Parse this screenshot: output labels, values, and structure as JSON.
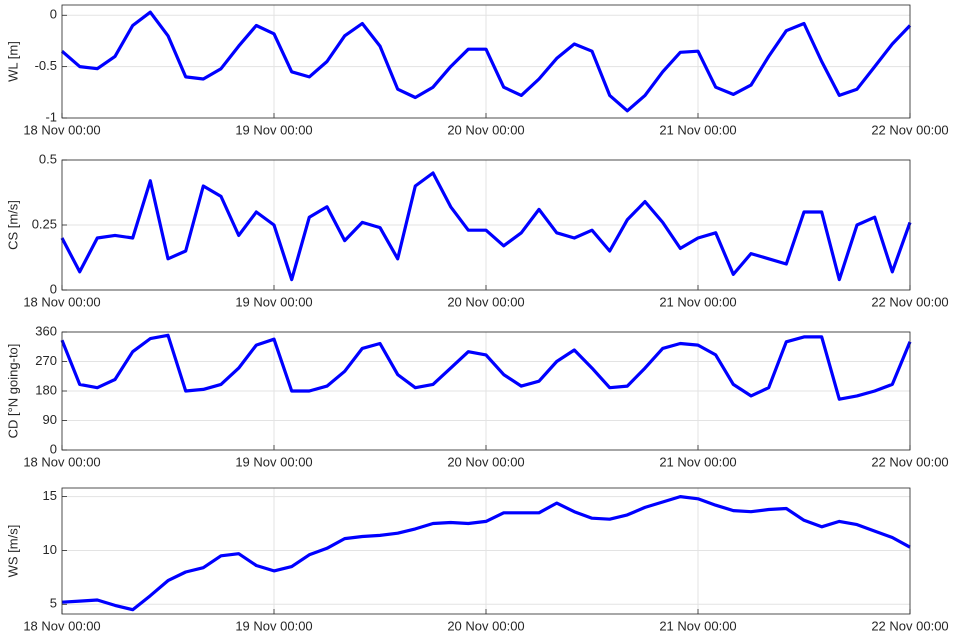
{
  "chart_data": [
    {
      "type": "line",
      "ylabel": "WL [m]",
      "grid": true,
      "x": [
        "18 Nov 00:00",
        "18 Nov 02:00",
        "18 Nov 04:00",
        "18 Nov 06:00",
        "18 Nov 08:00",
        "18 Nov 10:00",
        "18 Nov 12:00",
        "18 Nov 14:00",
        "18 Nov 16:00",
        "18 Nov 18:00",
        "18 Nov 20:00",
        "18 Nov 22:00",
        "19 Nov 00:00",
        "19 Nov 02:00",
        "19 Nov 04:00",
        "19 Nov 06:00",
        "19 Nov 08:00",
        "19 Nov 10:00",
        "19 Nov 12:00",
        "19 Nov 14:00",
        "19 Nov 16:00",
        "19 Nov 18:00",
        "19 Nov 20:00",
        "19 Nov 22:00",
        "20 Nov 00:00",
        "20 Nov 02:00",
        "20 Nov 04:00",
        "20 Nov 06:00",
        "20 Nov 08:00",
        "20 Nov 10:00",
        "20 Nov 12:00",
        "20 Nov 14:00",
        "20 Nov 16:00",
        "20 Nov 18:00",
        "20 Nov 20:00",
        "20 Nov 22:00",
        "21 Nov 00:00",
        "21 Nov 02:00",
        "21 Nov 04:00",
        "21 Nov 06:00",
        "21 Nov 08:00",
        "21 Nov 10:00",
        "21 Nov 12:00",
        "21 Nov 14:00",
        "21 Nov 16:00",
        "21 Nov 18:00",
        "21 Nov 20:00",
        "21 Nov 22:00",
        "22 Nov 00:00"
      ],
      "series": [
        {
          "color": "#0000ff",
          "values": [
            -0.35,
            -0.5,
            -0.52,
            -0.4,
            -0.1,
            0.03,
            -0.2,
            -0.6,
            -0.62,
            -0.52,
            -0.3,
            -0.1,
            -0.18,
            -0.55,
            -0.6,
            -0.45,
            -0.2,
            -0.08,
            -0.3,
            -0.72,
            -0.8,
            -0.7,
            -0.5,
            -0.33,
            -0.33,
            -0.7,
            -0.78,
            -0.62,
            -0.42,
            -0.28,
            -0.35,
            -0.78,
            -0.93,
            -0.78,
            -0.55,
            -0.36,
            -0.35,
            -0.7,
            -0.77,
            -0.68,
            -0.4,
            -0.15,
            -0.08,
            -0.45,
            -0.78,
            -0.72,
            -0.5,
            -0.28,
            -0.1
          ]
        }
      ],
      "xlim": [
        "18 Nov 00:00",
        "22 Nov 00:00"
      ],
      "xticks": [
        "18 Nov 00:00",
        "19 Nov 00:00",
        "20 Nov 00:00",
        "21 Nov 00:00",
        "22 Nov 00:00"
      ],
      "ylim": [
        -1,
        0.1
      ],
      "yticks": [
        -1,
        -0.5,
        0
      ]
    },
    {
      "type": "line",
      "ylabel": "CS [m/s]",
      "grid": true,
      "x": [
        "18 Nov 00:00",
        "18 Nov 02:00",
        "18 Nov 04:00",
        "18 Nov 06:00",
        "18 Nov 08:00",
        "18 Nov 10:00",
        "18 Nov 12:00",
        "18 Nov 14:00",
        "18 Nov 16:00",
        "18 Nov 18:00",
        "18 Nov 20:00",
        "18 Nov 22:00",
        "19 Nov 00:00",
        "19 Nov 02:00",
        "19 Nov 04:00",
        "19 Nov 06:00",
        "19 Nov 08:00",
        "19 Nov 10:00",
        "19 Nov 12:00",
        "19 Nov 14:00",
        "19 Nov 16:00",
        "19 Nov 18:00",
        "19 Nov 20:00",
        "19 Nov 22:00",
        "20 Nov 00:00",
        "20 Nov 02:00",
        "20 Nov 04:00",
        "20 Nov 06:00",
        "20 Nov 08:00",
        "20 Nov 10:00",
        "20 Nov 12:00",
        "20 Nov 14:00",
        "20 Nov 16:00",
        "20 Nov 18:00",
        "20 Nov 20:00",
        "20 Nov 22:00",
        "21 Nov 00:00",
        "21 Nov 02:00",
        "21 Nov 04:00",
        "21 Nov 06:00",
        "21 Nov 08:00",
        "21 Nov 10:00",
        "21 Nov 12:00",
        "21 Nov 14:00",
        "21 Nov 16:00",
        "21 Nov 18:00",
        "21 Nov 20:00",
        "21 Nov 22:00",
        "22 Nov 00:00"
      ],
      "series": [
        {
          "color": "#0000ff",
          "values": [
            0.2,
            0.07,
            0.2,
            0.21,
            0.2,
            0.42,
            0.12,
            0.15,
            0.4,
            0.36,
            0.21,
            0.3,
            0.25,
            0.04,
            0.28,
            0.32,
            0.19,
            0.26,
            0.24,
            0.12,
            0.4,
            0.45,
            0.32,
            0.23,
            0.23,
            0.17,
            0.22,
            0.31,
            0.22,
            0.2,
            0.23,
            0.15,
            0.27,
            0.34,
            0.26,
            0.16,
            0.2,
            0.22,
            0.06,
            0.14,
            0.12,
            0.1,
            0.3,
            0.3,
            0.04,
            0.25,
            0.28,
            0.07,
            0.26
          ]
        }
      ],
      "xlim": [
        "18 Nov 00:00",
        "22 Nov 00:00"
      ],
      "xticks": [
        "18 Nov 00:00",
        "19 Nov 00:00",
        "20 Nov 00:00",
        "21 Nov 00:00",
        "22 Nov 00:00"
      ],
      "ylim": [
        0,
        0.5
      ],
      "yticks": [
        0,
        0.25,
        0.5
      ]
    },
    {
      "type": "line",
      "ylabel": "CD [°N going-to]",
      "grid": true,
      "x": [
        "18 Nov 00:00",
        "18 Nov 02:00",
        "18 Nov 04:00",
        "18 Nov 06:00",
        "18 Nov 08:00",
        "18 Nov 10:00",
        "18 Nov 12:00",
        "18 Nov 14:00",
        "18 Nov 16:00",
        "18 Nov 18:00",
        "18 Nov 20:00",
        "18 Nov 22:00",
        "19 Nov 00:00",
        "19 Nov 02:00",
        "19 Nov 04:00",
        "19 Nov 06:00",
        "19 Nov 08:00",
        "19 Nov 10:00",
        "19 Nov 12:00",
        "19 Nov 14:00",
        "19 Nov 16:00",
        "19 Nov 18:00",
        "19 Nov 20:00",
        "19 Nov 22:00",
        "20 Nov 00:00",
        "20 Nov 02:00",
        "20 Nov 04:00",
        "20 Nov 06:00",
        "20 Nov 08:00",
        "20 Nov 10:00",
        "20 Nov 12:00",
        "20 Nov 14:00",
        "20 Nov 16:00",
        "20 Nov 18:00",
        "20 Nov 20:00",
        "20 Nov 22:00",
        "21 Nov 00:00",
        "21 Nov 02:00",
        "21 Nov 04:00",
        "21 Nov 06:00",
        "21 Nov 08:00",
        "21 Nov 10:00",
        "21 Nov 12:00",
        "21 Nov 14:00",
        "21 Nov 16:00",
        "21 Nov 18:00",
        "21 Nov 20:00",
        "21 Nov 22:00",
        "22 Nov 00:00"
      ],
      "series": [
        {
          "color": "#0000ff",
          "values": [
            335,
            200,
            190,
            215,
            300,
            340,
            350,
            180,
            185,
            200,
            250,
            320,
            338,
            180,
            180,
            195,
            240,
            310,
            325,
            230,
            190,
            200,
            250,
            300,
            290,
            230,
            195,
            210,
            270,
            305,
            250,
            190,
            195,
            250,
            310,
            325,
            320,
            290,
            200,
            165,
            190,
            330,
            345,
            345,
            155,
            165,
            180,
            200,
            330
          ]
        }
      ],
      "xlim": [
        "18 Nov 00:00",
        "22 Nov 00:00"
      ],
      "xticks": [
        "18 Nov 00:00",
        "19 Nov 00:00",
        "20 Nov 00:00",
        "21 Nov 00:00",
        "22 Nov 00:00"
      ],
      "ylim": [
        0,
        360
      ],
      "yticks": [
        0,
        90,
        180,
        270,
        360
      ]
    },
    {
      "type": "line",
      "ylabel": "WS [m/s]",
      "grid": true,
      "x": [
        "18 Nov 00:00",
        "18 Nov 02:00",
        "18 Nov 04:00",
        "18 Nov 06:00",
        "18 Nov 08:00",
        "18 Nov 10:00",
        "18 Nov 12:00",
        "18 Nov 14:00",
        "18 Nov 16:00",
        "18 Nov 18:00",
        "18 Nov 20:00",
        "18 Nov 22:00",
        "19 Nov 00:00",
        "19 Nov 02:00",
        "19 Nov 04:00",
        "19 Nov 06:00",
        "19 Nov 08:00",
        "19 Nov 10:00",
        "19 Nov 12:00",
        "19 Nov 14:00",
        "19 Nov 16:00",
        "19 Nov 18:00",
        "19 Nov 20:00",
        "19 Nov 22:00",
        "20 Nov 00:00",
        "20 Nov 02:00",
        "20 Nov 04:00",
        "20 Nov 06:00",
        "20 Nov 08:00",
        "20 Nov 10:00",
        "20 Nov 12:00",
        "20 Nov 14:00",
        "20 Nov 16:00",
        "20 Nov 18:00",
        "20 Nov 20:00",
        "20 Nov 22:00",
        "21 Nov 00:00",
        "21 Nov 02:00",
        "21 Nov 04:00",
        "21 Nov 06:00",
        "21 Nov 08:00",
        "21 Nov 10:00",
        "21 Nov 12:00",
        "21 Nov 14:00",
        "21 Nov 16:00",
        "21 Nov 18:00",
        "21 Nov 20:00",
        "21 Nov 22:00",
        "22 Nov 00:00"
      ],
      "series": [
        {
          "color": "#0000ff",
          "values": [
            5.2,
            5.3,
            5.4,
            4.9,
            4.5,
            5.8,
            7.2,
            8.0,
            8.4,
            9.5,
            9.7,
            8.6,
            8.1,
            8.5,
            9.6,
            10.2,
            11.1,
            11.3,
            11.4,
            11.6,
            12.0,
            12.5,
            12.6,
            12.5,
            12.7,
            13.5,
            13.5,
            13.5,
            14.4,
            13.6,
            13.0,
            12.9,
            13.3,
            14.0,
            14.5,
            15.0,
            14.8,
            14.2,
            13.7,
            13.6,
            13.8,
            13.9,
            12.8,
            12.2,
            12.7,
            12.4,
            11.8,
            11.2,
            10.3
          ]
        }
      ],
      "xlim": [
        "18 Nov 00:00",
        "22 Nov 00:00"
      ],
      "xticks": [
        "18 Nov 00:00",
        "19 Nov 00:00",
        "20 Nov 00:00",
        "21 Nov 00:00",
        "22 Nov 00:00"
      ],
      "ylim": [
        4.1,
        15.8
      ],
      "yticks": [
        5,
        10,
        15
      ]
    }
  ]
}
